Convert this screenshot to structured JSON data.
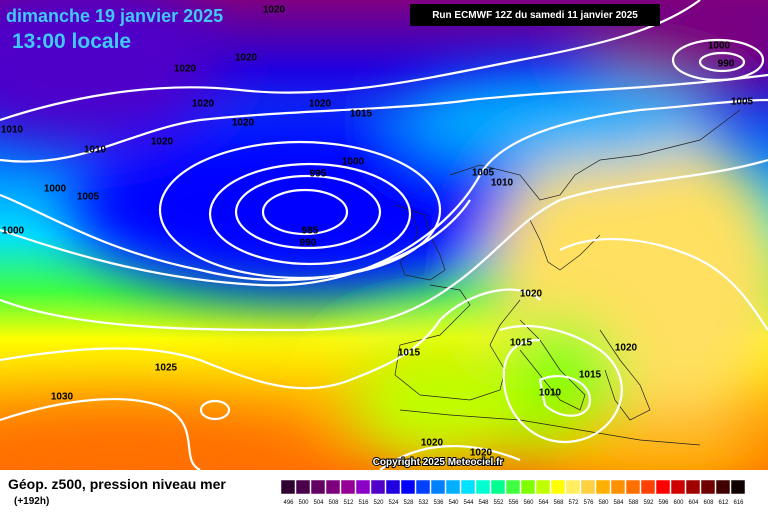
{
  "header": {
    "date": "dimanche 19 janvier 2025",
    "time": "13:00 locale",
    "run": "Run ECMWF 12Z du samedi 11 janvier 2025"
  },
  "isobars": {
    "labels": [
      "1020",
      "1020",
      "1020",
      "1020",
      "1020",
      "1020",
      "1015",
      "1020",
      "1010",
      "1010",
      "1000",
      "1005",
      "1000",
      "1000",
      "995",
      "985",
      "990",
      "1005",
      "1010",
      "1000",
      "990",
      "1005",
      "1020",
      "1015",
      "1015",
      "1020",
      "1015",
      "1010",
      "1025",
      "1030",
      "1020",
      "1020"
    ]
  },
  "footer": {
    "title": "Géop. z500, pression niveau mer",
    "lead": "(+192h)",
    "copyright": "Copyright 2025 Meteociel.fr"
  },
  "scale": {
    "values": [
      496,
      500,
      504,
      508,
      512,
      516,
      520,
      524,
      528,
      532,
      536,
      540,
      544,
      548,
      552,
      556,
      560,
      564,
      568,
      572,
      576,
      580,
      584,
      588,
      592,
      596,
      600,
      604,
      608,
      612,
      616
    ],
    "colors": [
      "#300030",
      "#4b004b",
      "#640064",
      "#7d007d",
      "#960096",
      "#8c00c8",
      "#5000c8",
      "#2000e0",
      "#0000ff",
      "#0040ff",
      "#0080ff",
      "#00b0ff",
      "#00e0ff",
      "#00ffd0",
      "#00ff90",
      "#40ff40",
      "#80ff00",
      "#c0ff00",
      "#ffff00",
      "#ffee60",
      "#ffd040",
      "#ffb000",
      "#ff9000",
      "#ff7000",
      "#ff4000",
      "#ff0000",
      "#d00000",
      "#a00000",
      "#700000",
      "#400000",
      "#100000"
    ]
  }
}
